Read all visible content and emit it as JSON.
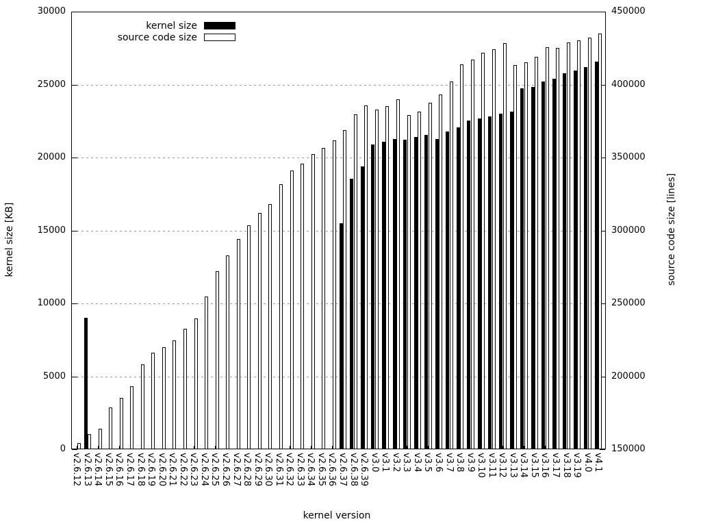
{
  "chart_data": {
    "type": "bar",
    "title": "",
    "xlabel": "kernel version",
    "ylabel_left": "kernel size [KB]",
    "ylabel_right": "source code size [lines]",
    "grid": "horizontal dashed",
    "legend_position": "top-left inside",
    "legend": [
      {
        "label": "kernel size",
        "swatch": "filled-black"
      },
      {
        "label": "source code size",
        "swatch": "open-white"
      }
    ],
    "left_axis": {
      "min": 0,
      "max": 30000,
      "ticks": [
        0,
        5000,
        10000,
        15000,
        20000,
        25000,
        30000
      ]
    },
    "right_axis": {
      "min": 150000,
      "max": 450000,
      "ticks": [
        150000,
        200000,
        250000,
        300000,
        350000,
        400000,
        450000
      ]
    },
    "categories": [
      "v2.6.12",
      "v2.6.13",
      "v2.6.14",
      "v2.6.15",
      "v2.6.16",
      "v2.6.17",
      "v2.6.18",
      "v2.6.19",
      "v2.6.20",
      "v2.6.21",
      "v2.6.22",
      "v2.6.23",
      "v2.6.24",
      "v2.6.25",
      "v2.6.26",
      "v2.6.27",
      "v2.6.28",
      "v2.6.29",
      "v2.6.30",
      "v2.6.31",
      "v2.6.32",
      "v2.6.33",
      "v2.6.34",
      "v2.6.35",
      "v2.6.36",
      "v2.6.37",
      "v2.6.38",
      "v2.6.39",
      "v3.0",
      "v3.1",
      "v3.2",
      "v3.3",
      "v3.4",
      "v3.5",
      "v3.6",
      "v3.7",
      "v3.8",
      "v3.9",
      "v3.10",
      "v3.11",
      "v3.12",
      "v3.13",
      "v3.14",
      "v3.15",
      "v3.16",
      "v3.17",
      "v3.18",
      "v3.19",
      "v4.0",
      "v4.1"
    ],
    "series": [
      {
        "name": "kernel size",
        "axis": "left",
        "unit": "KB",
        "values": [
          null,
          9000,
          null,
          null,
          null,
          null,
          null,
          null,
          null,
          null,
          null,
          null,
          null,
          null,
          null,
          null,
          null,
          null,
          null,
          null,
          null,
          null,
          null,
          null,
          null,
          15500,
          18550,
          19400,
          20900,
          21100,
          21270,
          21220,
          21420,
          21550,
          21260,
          21800,
          22060,
          22530,
          22690,
          22810,
          23000,
          23160,
          24730,
          24820,
          25200,
          25400,
          25760,
          25940,
          26180,
          26550
        ]
      },
      {
        "name": "source code size",
        "axis": "right",
        "unit": "lines",
        "values": [
          154400,
          160100,
          163900,
          178600,
          185200,
          193300,
          208200,
          216300,
          219800,
          224600,
          232800,
          239500,
          254800,
          271900,
          282700,
          294000,
          303500,
          312000,
          318200,
          331600,
          340900,
          345600,
          352200,
          356700,
          361600,
          368600,
          379500,
          385700,
          383000,
          385200,
          390000,
          379000,
          381500,
          387600,
          393000,
          402100,
          413800,
          417000,
          421700,
          424000,
          428500,
          413400,
          415400,
          418900,
          425400,
          425100,
          429000,
          430400,
          432300,
          434900
        ]
      }
    ]
  },
  "colors": {
    "background": "#ffffff",
    "bar_kernel": "#000000",
    "bar_source_fill": "#ffffff",
    "bar_source_border": "#000000",
    "grid": "#9a9a9a",
    "axis": "#000000",
    "text": "#000000"
  }
}
